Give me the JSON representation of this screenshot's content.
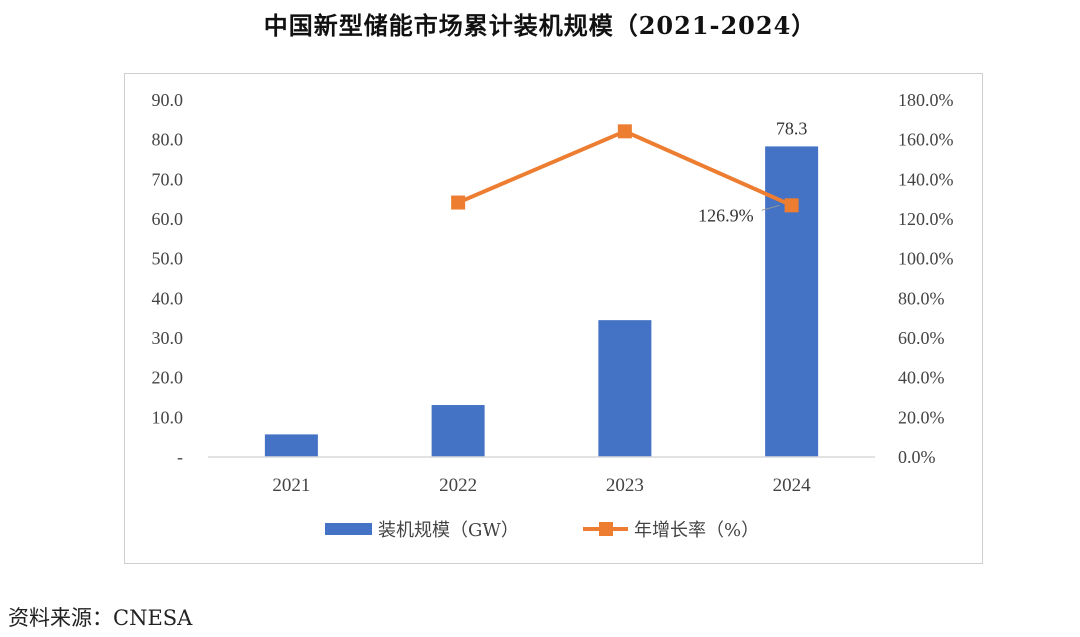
{
  "title": "中国新型储能市场累计装机规模（2021-2024）",
  "source_text": "资料来源：CNESA",
  "colors": {
    "bar": "#4472c4",
    "line": "#ed7d31",
    "axis": "#d9d9d9",
    "frame": "#cfcfcf"
  },
  "chart_data": {
    "type": "bar+line",
    "categories": [
      "2021",
      "2022",
      "2023",
      "2024"
    ],
    "series": [
      {
        "name": "装机规模（GW）",
        "type": "bar",
        "axis": "left",
        "values": [
          5.7,
          13.1,
          34.5,
          78.3
        ]
      },
      {
        "name": "年增长率（%）",
        "type": "line",
        "axis": "right",
        "values": [
          null,
          128.3,
          164.2,
          126.9
        ]
      }
    ],
    "left_axis": {
      "min": 0,
      "max": 90,
      "step": 10,
      "tick_labels": [
        "-",
        "10.0",
        "20.0",
        "30.0",
        "40.0",
        "50.0",
        "60.0",
        "70.0",
        "80.0",
        "90.0"
      ]
    },
    "right_axis": {
      "min": 0,
      "max": 180,
      "step": 20,
      "tick_labels": [
        "0.0%",
        "20.0%",
        "40.0%",
        "60.0%",
        "80.0%",
        "100.0%",
        "120.0%",
        "140.0%",
        "160.0%",
        "180.0%"
      ]
    },
    "data_labels": [
      {
        "series": 0,
        "index": 3,
        "text": "78.3"
      },
      {
        "series": 1,
        "index": 3,
        "text": "126.9%"
      }
    ],
    "legend_position": "bottom",
    "grid": false
  }
}
